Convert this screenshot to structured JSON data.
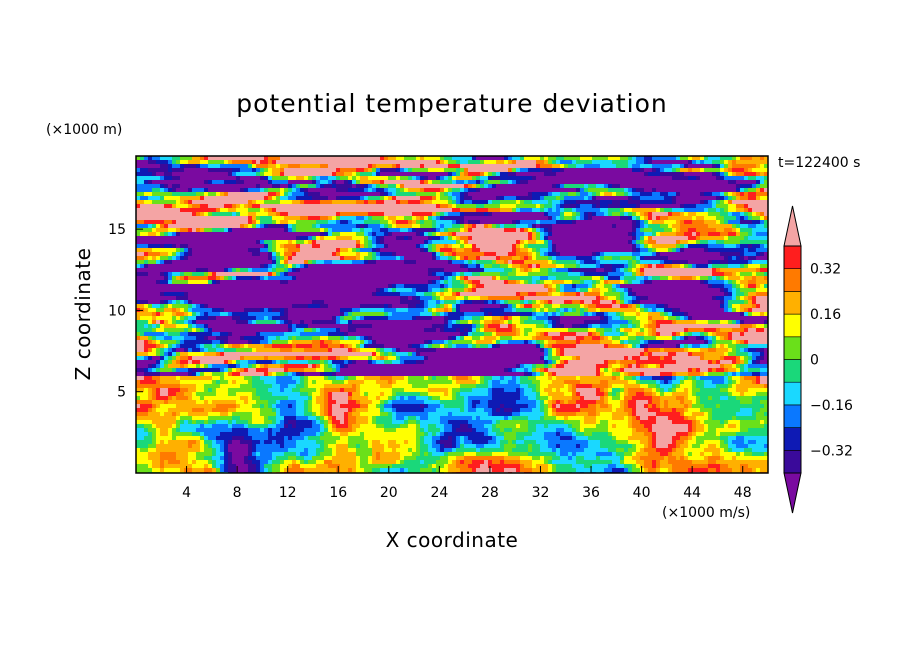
{
  "chart_data": {
    "type": "heatmap",
    "title": "potential temperature deviation",
    "xlabel": "X coordinate",
    "ylabel": "Z coordinate",
    "x_unit": "(×1000 m/s)",
    "y_unit": "(×1000 m)",
    "time_label": "t=122400 s",
    "xlim": [
      0,
      50
    ],
    "ylim": [
      0,
      19.5
    ],
    "x_ticks": [
      4,
      8,
      12,
      16,
      20,
      24,
      28,
      32,
      36,
      40,
      44,
      48
    ],
    "y_ticks": [
      5,
      10,
      15
    ],
    "colorbar": {
      "levels": [
        -0.4,
        -0.32,
        -0.24,
        -0.16,
        -0.08,
        0,
        0.08,
        0.16,
        0.24,
        0.32,
        0.4
      ],
      "tick_labels": [
        "0.32",
        "0.16",
        "0",
        "−0.16",
        "−0.32"
      ],
      "tick_values": [
        0.32,
        0.16,
        0,
        -0.16,
        -0.32
      ],
      "colors": [
        "#7a0aa0",
        "#3a0a9a",
        "#0e1ab4",
        "#0a78ff",
        "#1ad8ff",
        "#1ad87a",
        "#6ae01a",
        "#ffff00",
        "#ffb000",
        "#ff7a00",
        "#ff1e1e",
        "#f4a4a4"
      ],
      "extend": "both"
    },
    "regions": [
      {
        "layer": "upper-stratified (z ≥ 6)",
        "pattern": "alternating bands of ≤ -0.4 (purple) and ≥ 0.4 (pink) with thin multicolour transition zones"
      },
      {
        "layer": "lower-convective (z < 6)",
        "pattern": "mixed turbulent field mostly between -0.32 and 0.32 with blue and red eddies"
      }
    ]
  }
}
